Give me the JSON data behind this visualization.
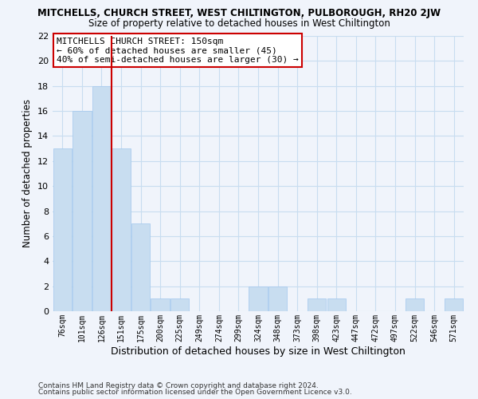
{
  "title": "MITCHELLS, CHURCH STREET, WEST CHILTINGTON, PULBOROUGH, RH20 2JW",
  "subtitle": "Size of property relative to detached houses in West Chiltington",
  "xlabel": "Distribution of detached houses by size in West Chiltington",
  "ylabel": "Number of detached properties",
  "bar_color": "#c8ddf0",
  "bar_edge_color": "#aaccee",
  "grid_color": "#c8ddf0",
  "background_color": "#f0f4fb",
  "plot_bg_color": "#f0f4fb",
  "bins": [
    "76sqm",
    "101sqm",
    "126sqm",
    "151sqm",
    "175sqm",
    "200sqm",
    "225sqm",
    "249sqm",
    "274sqm",
    "299sqm",
    "324sqm",
    "348sqm",
    "373sqm",
    "398sqm",
    "423sqm",
    "447sqm",
    "472sqm",
    "497sqm",
    "522sqm",
    "546sqm",
    "571sqm"
  ],
  "values": [
    13,
    16,
    18,
    13,
    7,
    1,
    1,
    0,
    0,
    0,
    2,
    2,
    0,
    1,
    1,
    0,
    0,
    0,
    1,
    0,
    1
  ],
  "ref_line_index": 3,
  "ref_line_color": "#cc0000",
  "ylim": [
    0,
    22
  ],
  "yticks": [
    0,
    2,
    4,
    6,
    8,
    10,
    12,
    14,
    16,
    18,
    20,
    22
  ],
  "annotation_text": "MITCHELLS CHURCH STREET: 150sqm\n← 60% of detached houses are smaller (45)\n40% of semi-detached houses are larger (30) →",
  "annotation_box_color": "#ffffff",
  "annotation_box_edge": "#cc0000",
  "footer1": "Contains HM Land Registry data © Crown copyright and database right 2024.",
  "footer2": "Contains public sector information licensed under the Open Government Licence v3.0."
}
